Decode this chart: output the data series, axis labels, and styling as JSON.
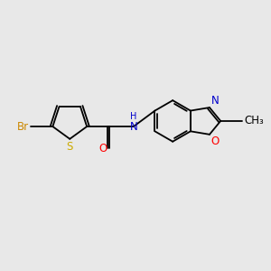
{
  "background_color": "#e8e8e8",
  "bond_color": "#000000",
  "Br_color": "#cc8800",
  "S_color": "#ccaa00",
  "O_color": "#ff0000",
  "N_color": "#0000cc",
  "lw": 1.3,
  "fs": 8.5,
  "xlim": [
    0,
    10
  ],
  "ylim": [
    0,
    8
  ],
  "fig_width": 3.0,
  "fig_height": 3.0,
  "dpi": 100
}
